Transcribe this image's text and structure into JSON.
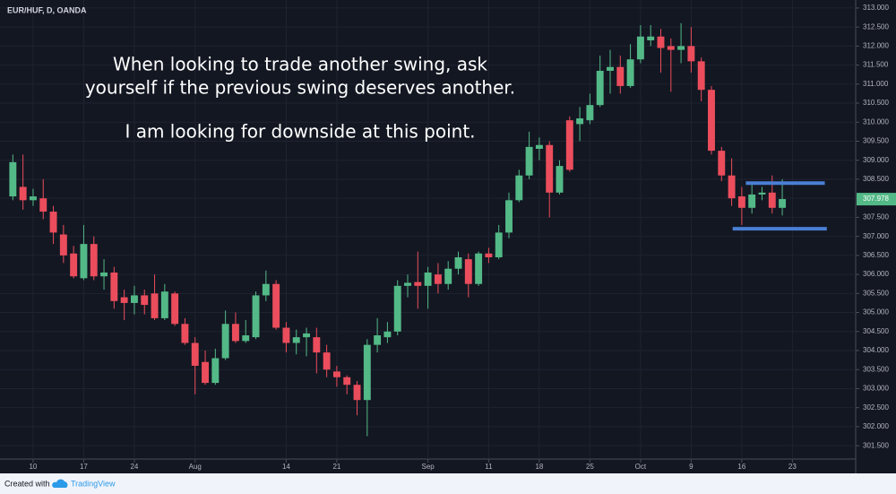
{
  "chart_data": {
    "type": "candlestick",
    "title": "EUR/HUF, D, OANDA",
    "annotation": [
      "When looking to trade another swing, ask",
      "yourself if the previous swing deserves another.",
      "I am looking for downside at this point."
    ],
    "up_color": "#53b987",
    "down_color": "#eb4d5c",
    "open": [
      308.05,
      308.3,
      307.95,
      308.0,
      307.65,
      307.05,
      306.55,
      305.9,
      306.8,
      305.95,
      306.05,
      305.4,
      305.25,
      305.45,
      305.5,
      304.85,
      305.5,
      304.7,
      304.2,
      303.7,
      303.15,
      303.8,
      304.7,
      304.25,
      304.35,
      305.45,
      305.75,
      304.6,
      304.2,
      304.35,
      304.35,
      303.95,
      303.45,
      303.3,
      303.1,
      302.7,
      304.15,
      304.35,
      304.5,
      305.7,
      305.8,
      305.7,
      306.0,
      305.75,
      306.15,
      306.4,
      305.75,
      306.55,
      306.45,
      307.1,
      307.95,
      308.6,
      309.3,
      309.4,
      308.15,
      310.05,
      309.95,
      310.05,
      310.45,
      311.35,
      311.45,
      310.95,
      311.65,
      312.15,
      312.25,
      312.0,
      311.9,
      312.0,
      311.6,
      310.85,
      309.25,
      308.6,
      308.05,
      307.75,
      308.1,
      308.15,
      307.75
    ],
    "high": [
      309.15,
      309.15,
      308.25,
      308.5,
      307.8,
      307.3,
      306.75,
      307.3,
      307.0,
      306.4,
      306.2,
      305.6,
      305.7,
      305.6,
      306.0,
      305.75,
      305.55,
      304.85,
      304.35,
      304.0,
      304.05,
      305.05,
      305.0,
      304.8,
      305.55,
      306.1,
      305.85,
      304.75,
      304.55,
      304.6,
      304.6,
      304.15,
      303.6,
      303.35,
      303.2,
      304.3,
      304.85,
      304.75,
      305.85,
      306.0,
      306.6,
      306.2,
      306.3,
      306.35,
      306.6,
      306.55,
      306.6,
      306.7,
      307.3,
      308.15,
      308.75,
      309.75,
      309.6,
      309.5,
      309.0,
      310.15,
      310.4,
      310.75,
      311.75,
      311.9,
      311.75,
      312.05,
      312.55,
      312.55,
      312.45,
      312.2,
      312.6,
      312.5,
      311.7,
      310.95,
      309.35,
      309.05,
      308.3,
      308.4,
      308.3,
      308.6,
      308.5
    ],
    "low": [
      307.95,
      307.7,
      307.8,
      307.45,
      306.8,
      306.3,
      305.9,
      305.85,
      305.85,
      305.6,
      305.1,
      304.8,
      304.95,
      304.95,
      304.8,
      304.8,
      304.65,
      304.15,
      302.85,
      303.1,
      303.1,
      303.75,
      304.2,
      304.2,
      304.3,
      305.3,
      304.55,
      303.95,
      303.9,
      303.85,
      303.4,
      303.3,
      303.05,
      302.85,
      302.3,
      301.75,
      303.95,
      304.2,
      304.4,
      305.4,
      305.1,
      305.1,
      305.5,
      305.6,
      306.0,
      305.4,
      305.7,
      306.3,
      306.4,
      306.95,
      307.9,
      308.5,
      309.0,
      307.5,
      308.1,
      308.7,
      309.5,
      309.95,
      310.4,
      310.75,
      310.75,
      310.9,
      311.55,
      312.0,
      311.3,
      310.8,
      311.55,
      311.3,
      310.55,
      309.15,
      308.45,
      307.8,
      307.3,
      307.6,
      307.95,
      307.6,
      307.55
    ],
    "close": [
      308.95,
      307.95,
      308.05,
      307.65,
      307.1,
      306.5,
      305.95,
      306.8,
      305.95,
      306.05,
      305.3,
      305.25,
      305.45,
      305.2,
      304.85,
      305.55,
      304.7,
      304.2,
      303.6,
      303.15,
      303.8,
      304.7,
      304.25,
      304.4,
      305.45,
      305.75,
      304.6,
      304.2,
      304.35,
      304.45,
      303.95,
      303.5,
      303.3,
      303.1,
      302.7,
      304.15,
      304.4,
      304.5,
      305.7,
      305.78,
      305.7,
      306.05,
      305.75,
      306.15,
      306.45,
      305.75,
      306.55,
      306.45,
      307.1,
      307.95,
      308.6,
      309.35,
      309.4,
      308.15,
      308.85,
      308.75,
      310.1,
      310.45,
      311.35,
      311.45,
      310.95,
      311.65,
      312.25,
      312.25,
      311.95,
      311.9,
      312.0,
      311.6,
      310.85,
      309.25,
      308.6,
      308.0,
      307.75,
      308.1,
      308.15,
      307.75,
      307.98
    ],
    "last_price": 307.978,
    "levels": [
      {
        "value": 308.4,
        "from": 72.4,
        "to": 80.2,
        "color": "#4a7fd4"
      },
      {
        "value": 307.2,
        "from": 71.1,
        "to": 80.4,
        "color": "#4a7fd4"
      }
    ],
    "ylim": [
      301.15,
      313.21
    ],
    "yticks": [
      {
        "value": 301.5,
        "label": "301.500"
      },
      {
        "value": 302,
        "label": "302.000"
      },
      {
        "value": 302.5,
        "label": "302.500"
      },
      {
        "value": 303,
        "label": "303.000"
      },
      {
        "value": 303.5,
        "label": "303.500"
      },
      {
        "value": 304,
        "label": "304.000"
      },
      {
        "value": 304.5,
        "label": "304.500"
      },
      {
        "value": 305,
        "label": "305.000"
      },
      {
        "value": 305.5,
        "label": "305.500"
      },
      {
        "value": 306,
        "label": "306.000"
      },
      {
        "value": 306.5,
        "label": "306.500"
      },
      {
        "value": 307,
        "label": "307.000"
      },
      {
        "value": 307.5,
        "label": "307.500"
      },
      {
        "value": 308,
        "label": "308.000"
      },
      {
        "value": 308.5,
        "label": "308.500"
      },
      {
        "value": 309,
        "label": "309.000"
      },
      {
        "value": 309.5,
        "label": "309.500"
      },
      {
        "value": 310,
        "label": "310.000"
      },
      {
        "value": 310.5,
        "label": "310.500"
      },
      {
        "value": 311,
        "label": "311.000"
      },
      {
        "value": 311.5,
        "label": "311.500"
      },
      {
        "value": 312,
        "label": "312.000"
      },
      {
        "value": 312.5,
        "label": "312.500"
      },
      {
        "value": 313,
        "label": "313.000"
      }
    ],
    "xlim": [
      -1.27,
      83.25
    ],
    "xticks": [
      {
        "value": 2,
        "label": "10"
      },
      {
        "value": 7,
        "label": "17"
      },
      {
        "value": 12,
        "label": "24"
      },
      {
        "value": 18,
        "label": "Aug"
      },
      {
        "value": 27,
        "label": "14"
      },
      {
        "value": 32,
        "label": "21"
      },
      {
        "value": 41,
        "label": "Sep"
      },
      {
        "value": 47,
        "label": "11"
      },
      {
        "value": 52,
        "label": "18"
      },
      {
        "value": 57,
        "label": "25"
      },
      {
        "value": 62,
        "label": "Oct"
      },
      {
        "value": 67,
        "label": "9"
      },
      {
        "value": 72,
        "label": "16"
      },
      {
        "value": 77,
        "label": "23"
      }
    ],
    "grid": true,
    "footer": {
      "created": "Created with",
      "brand": "TradingView"
    }
  }
}
